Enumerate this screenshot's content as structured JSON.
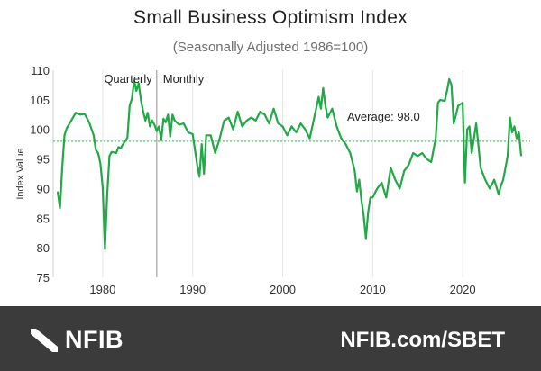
{
  "chart_data": {
    "type": "line",
    "title": "Small Business Optimism Index",
    "subtitle": "(Seasonally Adjusted 1986=100)",
    "ylabel": "Index Value",
    "xlabel": "",
    "xlim": [
      1974.5,
      2027.5
    ],
    "ylim": [
      75,
      110
    ],
    "yticks": [
      75,
      80,
      85,
      90,
      95,
      100,
      105,
      110
    ],
    "xticks": [
      1980,
      1990,
      2000,
      2010,
      2020
    ],
    "grid": "vertical",
    "divider": {
      "x": 1986,
      "left_label": "Quarterly",
      "right_label": "Monthly"
    },
    "average": {
      "value": 98.0,
      "label": "Average: 98.0"
    },
    "colors": {
      "line": "#22a846",
      "average": "#5cc26a",
      "divider": "#b5b5b5",
      "grid": "#e6e6e6"
    },
    "series": [
      {
        "x": [
          1975.0,
          1975.25,
          1975.5,
          1975.75,
          1976.0,
          1976.5,
          1977.0,
          1977.5,
          1978.0,
          1978.5,
          1979.0,
          1979.25,
          1979.5,
          1979.75,
          1980.0,
          1980.25,
          1980.5,
          1980.75,
          1981.0,
          1981.5,
          1981.75,
          1982.0,
          1982.25,
          1982.5,
          1982.75,
          1983.0,
          1983.25,
          1983.5,
          1983.75,
          1984.0,
          1984.25,
          1984.5,
          1984.75,
          1985.0,
          1985.25,
          1985.5,
          1985.75,
          1986.0,
          1986.25,
          1986.5,
          1986.75,
          1987.0,
          1987.25,
          1987.5,
          1987.75,
          1988.0,
          1988.5,
          1989.0,
          1989.5,
          1990.0,
          1990.5,
          1990.75,
          1991.0,
          1991.25,
          1991.5,
          1992.0,
          1992.5,
          1993.0,
          1993.5,
          1994.0,
          1994.5,
          1995.0,
          1995.5,
          1996.0,
          1996.5,
          1997.0,
          1997.5,
          1998.0,
          1998.5,
          1999.0,
          1999.5,
          2000.0,
          2000.5,
          2001.0,
          2001.5,
          2002.0,
          2002.5,
          2003.0,
          2003.5,
          2004.0,
          2004.25,
          2004.5,
          2004.75,
          2005.0,
          2005.5,
          2006.0,
          2006.5,
          2007.0,
          2007.5,
          2008.0,
          2008.25,
          2008.5,
          2008.75,
          2009.0,
          2009.25,
          2009.5,
          2009.75,
          2010.0,
          2010.5,
          2011.0,
          2011.5,
          2012.0,
          2012.5,
          2013.0,
          2013.5,
          2014.0,
          2014.5,
          2015.0,
          2015.5,
          2016.0,
          2016.5,
          2017.0,
          2017.25,
          2017.5,
          2018.0,
          2018.25,
          2018.5,
          2018.75,
          2019.0,
          2019.5,
          2020.0,
          2020.25,
          2020.5,
          2020.75,
          2021.0,
          2021.5,
          2022.0,
          2022.5,
          2023.0,
          2023.5,
          2024.0,
          2024.25,
          2024.5,
          2024.75,
          2025.0,
          2025.25,
          2025.5,
          2025.75,
          2026.0,
          2026.25,
          2026.5
        ],
        "y": [
          89.5,
          86.7,
          93.5,
          99.0,
          100.2,
          101.5,
          102.8,
          102.5,
          102.6,
          101.2,
          99.0,
          96.5,
          96.0,
          94.2,
          90.2,
          79.8,
          89.0,
          95.5,
          96.2,
          96.0,
          97.0,
          96.8,
          97.5,
          98.0,
          98.6,
          104.0,
          105.2,
          108.2,
          106.5,
          107.8,
          105.0,
          103.0,
          101.5,
          102.8,
          100.5,
          101.5,
          100.8,
          99.7,
          100.5,
          98.2,
          101.8,
          101.2,
          102.5,
          98.8,
          102.5,
          101.5,
          100.8,
          101.0,
          99.5,
          99.2,
          94.0,
          92.0,
          97.5,
          92.5,
          99.0,
          99.0,
          96.0,
          98.5,
          101.5,
          102.0,
          100.0,
          103.0,
          100.5,
          101.5,
          102.0,
          101.5,
          103.0,
          102.5,
          101.0,
          103.5,
          101.0,
          100.5,
          99.0,
          100.5,
          99.5,
          101.0,
          100.0,
          98.5,
          102.0,
          105.5,
          103.5,
          107.0,
          104.0,
          102.0,
          103.5,
          100.5,
          98.5,
          97.5,
          96.0,
          93.0,
          89.5,
          91.5,
          88.0,
          85.5,
          81.6,
          86.0,
          88.5,
          88.5,
          90.0,
          91.0,
          88.5,
          93.5,
          91.5,
          90.0,
          93.0,
          94.0,
          96.0,
          95.5,
          96.0,
          95.0,
          94.5,
          98.5,
          104.5,
          105.0,
          104.8,
          106.5,
          108.5,
          107.5,
          101.0,
          104.0,
          104.5,
          91.0,
          100.0,
          100.5,
          96.0,
          101.0,
          93.5,
          91.5,
          90.0,
          91.5,
          89.0,
          90.5,
          91.5,
          93.5,
          95.5,
          102.0,
          99.5,
          100.5,
          98.5,
          99.5,
          95.5
        ]
      }
    ]
  },
  "footer": {
    "brand": "NFIB",
    "link": "NFIB.com/SBET",
    "background": "#3b3b3b"
  }
}
